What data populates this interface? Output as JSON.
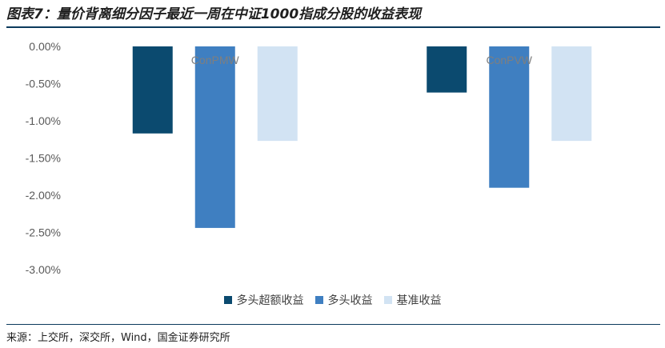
{
  "title": "图表7：量价背离细分因子最近一周在中证1000指成分股的收益表现",
  "source": "来源：上交所，深交所，Wind，国金证券研究所",
  "chart_data": {
    "type": "bar",
    "categories": [
      "ConPMW",
      "ConPVW"
    ],
    "series": [
      {
        "name": "多头超额收益",
        "color": "#0b4a6f",
        "values": [
          -1.17,
          -0.62
        ]
      },
      {
        "name": "多头收益",
        "color": "#3f7fc1",
        "values": [
          -2.44,
          -1.9
        ]
      },
      {
        "name": "基准收益",
        "color": "#d2e3f3",
        "values": [
          -1.27,
          -1.27
        ]
      }
    ],
    "y_ticks": [
      "0.00%",
      "-0.50%",
      "-1.00%",
      "-1.50%",
      "-2.00%",
      "-2.50%",
      "-3.00%"
    ],
    "ylim": [
      -3.0,
      0.0
    ],
    "legend_position": "bottom",
    "grid": false
  }
}
